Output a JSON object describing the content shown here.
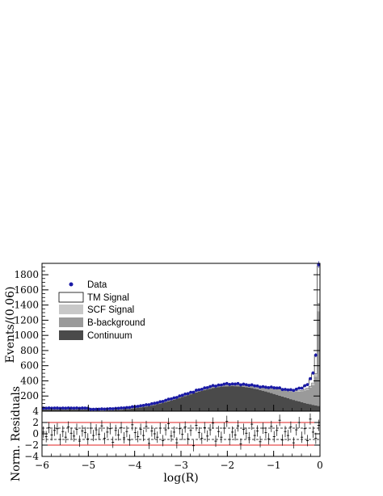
{
  "chart_data": [
    {
      "type": "histogram",
      "xlabel": "",
      "ylabel": "Events/(0.06)",
      "xlim": [
        -6,
        0
      ],
      "ylim": [
        0,
        1950
      ],
      "yticks": [
        200,
        400,
        600,
        800,
        1000,
        1200,
        1400,
        1600,
        1800
      ],
      "ytick_labels": [
        "200",
        "400",
        "600",
        "800",
        "1000",
        "1200",
        "1400",
        "1600",
        "1800"
      ],
      "bin_width": 0.06,
      "legend_position": "top-left",
      "legend": [
        {
          "label": "Data",
          "style": "marker",
          "color": "#1a1aa6"
        },
        {
          "label": "TM Signal",
          "style": "box",
          "color": "#ffffff"
        },
        {
          "label": "SCF Signal",
          "style": "box",
          "color": "#c8c8c8"
        },
        {
          "label": "B-background",
          "style": "box",
          "color": "#9a9a9a"
        },
        {
          "label": "Continuum",
          "style": "box",
          "color": "#4a4a4a"
        }
      ],
      "components": {
        "continuum_shape": {
          "amplitude": 330,
          "peak_x": -1.9,
          "sigma_left": 1.0,
          "sigma_right": 1.05,
          "floor": 20,
          "floor_edge": -5.0
        },
        "b_background_knots": {
          "x": [
            -6,
            -3,
            -2,
            -1.5,
            -1.2,
            -1.0,
            -0.8,
            -0.6,
            -0.4,
            -0.25,
            -0.15,
            -0.09,
            -0.03
          ],
          "y": [
            20,
            20,
            22,
            25,
            40,
            70,
            80,
            100,
            140,
            190,
            260,
            380,
            1250
          ]
        },
        "scf_signal_knots": {
          "x": [
            -6,
            -2,
            -1,
            -0.5,
            -0.2,
            -0.09,
            -0.03
          ],
          "y": [
            0,
            2,
            5,
            10,
            20,
            40,
            100
          ]
        },
        "tm_signal_knots": {
          "x": [
            -6,
            -2,
            -1,
            -0.6,
            -0.4,
            -0.25,
            -0.15,
            -0.09,
            -0.03
          ],
          "y": [
            0,
            3,
            8,
            15,
            30,
            60,
            130,
            250,
            500
          ]
        }
      },
      "data_points": {
        "color": "#1a1aa6",
        "values_note": "",
        "x": [
          -0.03,
          -0.09,
          -0.15,
          -0.21,
          -0.27,
          -0.33,
          -0.39,
          -0.45,
          -0.51,
          -0.57
        ],
        "y": [
          1700,
          840,
          620,
          500,
          420,
          380,
          365,
          350,
          345,
          340
        ]
      }
    },
    {
      "type": "scatter",
      "xlabel": "log(R)",
      "ylabel": "Norm. Residuals",
      "xlim": [
        -6,
        0
      ],
      "ylim": [
        -4,
        4
      ],
      "xticks": [
        -6,
        -5,
        -4,
        -3,
        -2,
        -1,
        0
      ],
      "xtick_labels": [
        "−6",
        "−5",
        "−4",
        "−3",
        "−2",
        "−1",
        "0"
      ],
      "yticks": [
        -4,
        -2,
        0,
        2,
        4
      ],
      "ytick_labels": [
        "−4",
        "−2",
        "0",
        "2",
        "4"
      ],
      "reference_lines": [
        {
          "y": 2,
          "color": "#e02020",
          "style": "solid"
        },
        {
          "y": -2,
          "color": "#e02020",
          "style": "solid"
        },
        {
          "y": 1,
          "color": "#000000",
          "style": "dashed"
        },
        {
          "y": -1,
          "color": "#000000",
          "style": "dashed"
        }
      ],
      "residuals": [
        0.3,
        -0.5,
        1.1,
        -0.2,
        0.6,
        0.9,
        -1.0,
        0.4,
        -0.6,
        1.2,
        0.1,
        -0.4,
        0.8,
        -1.3,
        0.5,
        0.2,
        -0.9,
        1.0,
        -0.3,
        0.7,
        -0.1,
        1.4,
        -0.8,
        0.3,
        0.9,
        -1.5,
        0.6,
        -0.2,
        1.1,
        -0.7,
        0.4,
        -1.1,
        1.6,
        0.2,
        -0.5,
        0.8,
        -0.3,
        1.3,
        -1.7,
        0.5,
        0.0,
        -0.6,
        1.0,
        -1.2,
        0.7,
        1.8,
        -0.4,
        0.3,
        -1.6,
        0.9,
        -0.1,
        1.2,
        -0.9,
        0.6,
        -2.1,
        1.5,
        0.2,
        -0.8,
        1.1,
        -0.4,
        0.7,
        1.9,
        -1.3,
        0.4,
        -0.6,
        1.0,
        2.2,
        -1.0,
        0.3,
        -0.2,
        1.4,
        -1.8,
        0.8,
        0.1,
        -0.7,
        1.7,
        -0.3,
        0.5,
        -1.4,
        1.0,
        0.2,
        -0.9,
        1.3,
        -0.5,
        0.6,
        2.4,
        -1.1,
        0.4,
        -0.3,
        1.2,
        -1.6,
        0.7,
        2.0,
        -0.6,
        0.9,
        -1.2,
        2.6,
        0.3,
        -0.8,
        1.5,
        -1.0
      ]
    }
  ]
}
